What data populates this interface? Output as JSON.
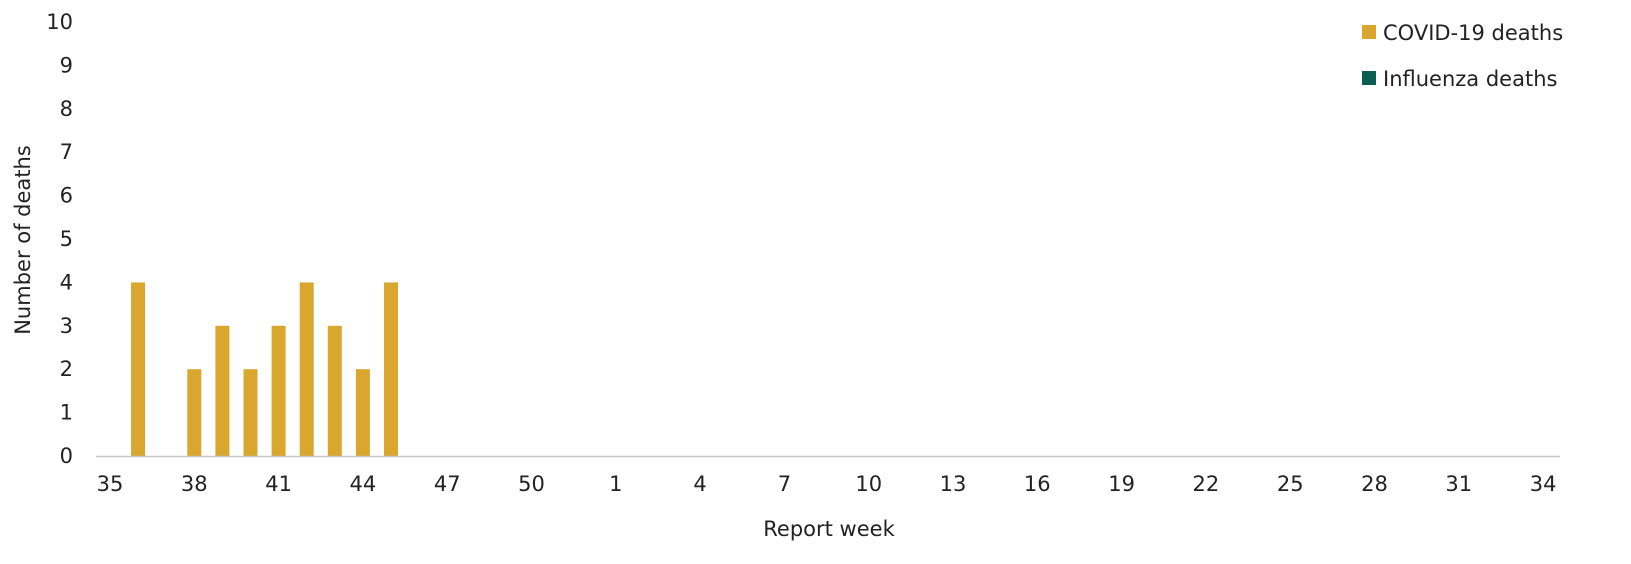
{
  "chart_data": {
    "type": "bar",
    "title": "",
    "xlabel": "Report week",
    "ylabel": "Number of deaths",
    "ylim": [
      0,
      10
    ],
    "yticks": [
      0,
      1,
      2,
      3,
      4,
      5,
      6,
      7,
      8,
      9,
      10
    ],
    "categories": [
      35,
      36,
      37,
      38,
      39,
      40,
      41,
      42,
      43,
      44,
      45,
      46,
      47,
      48,
      49,
      50,
      51,
      52,
      1,
      2,
      3,
      4,
      5,
      6,
      7,
      8,
      9,
      10,
      11,
      12,
      13,
      14,
      15,
      16,
      17,
      18,
      19,
      20,
      21,
      22,
      23,
      24,
      25,
      26,
      27,
      28,
      29,
      30,
      31,
      32,
      33,
      34
    ],
    "xtick_labels": [
      "35",
      "38",
      "41",
      "44",
      "47",
      "50",
      "1",
      "4",
      "7",
      "10",
      "13",
      "16",
      "19",
      "22",
      "25",
      "28",
      "31",
      "34"
    ],
    "series": [
      {
        "name": "COVID-19 deaths",
        "color": "#D9A62E",
        "values": [
          null,
          4,
          null,
          2,
          3,
          2,
          3,
          4,
          3,
          2,
          4,
          null,
          null,
          null,
          null,
          null,
          null,
          null,
          null,
          null,
          null,
          null,
          null,
          null,
          null,
          null,
          null,
          null,
          null,
          null,
          null,
          null,
          null,
          null,
          null,
          null,
          null,
          null,
          null,
          null,
          null,
          null,
          null,
          null,
          null,
          null,
          null,
          null,
          null,
          null,
          null,
          null
        ]
      },
      {
        "name": "Influenza deaths",
        "color": "#0B5E52",
        "values": [
          null,
          null,
          null,
          null,
          null,
          null,
          null,
          null,
          null,
          null,
          null,
          null,
          null,
          null,
          null,
          null,
          null,
          null,
          null,
          null,
          null,
          null,
          null,
          null,
          null,
          null,
          null,
          null,
          null,
          null,
          null,
          null,
          null,
          null,
          null,
          null,
          null,
          null,
          null,
          null,
          null,
          null,
          null,
          null,
          null,
          null,
          null,
          null,
          null,
          null,
          null,
          null
        ]
      }
    ],
    "legend_position": "top-right",
    "grid": false
  }
}
